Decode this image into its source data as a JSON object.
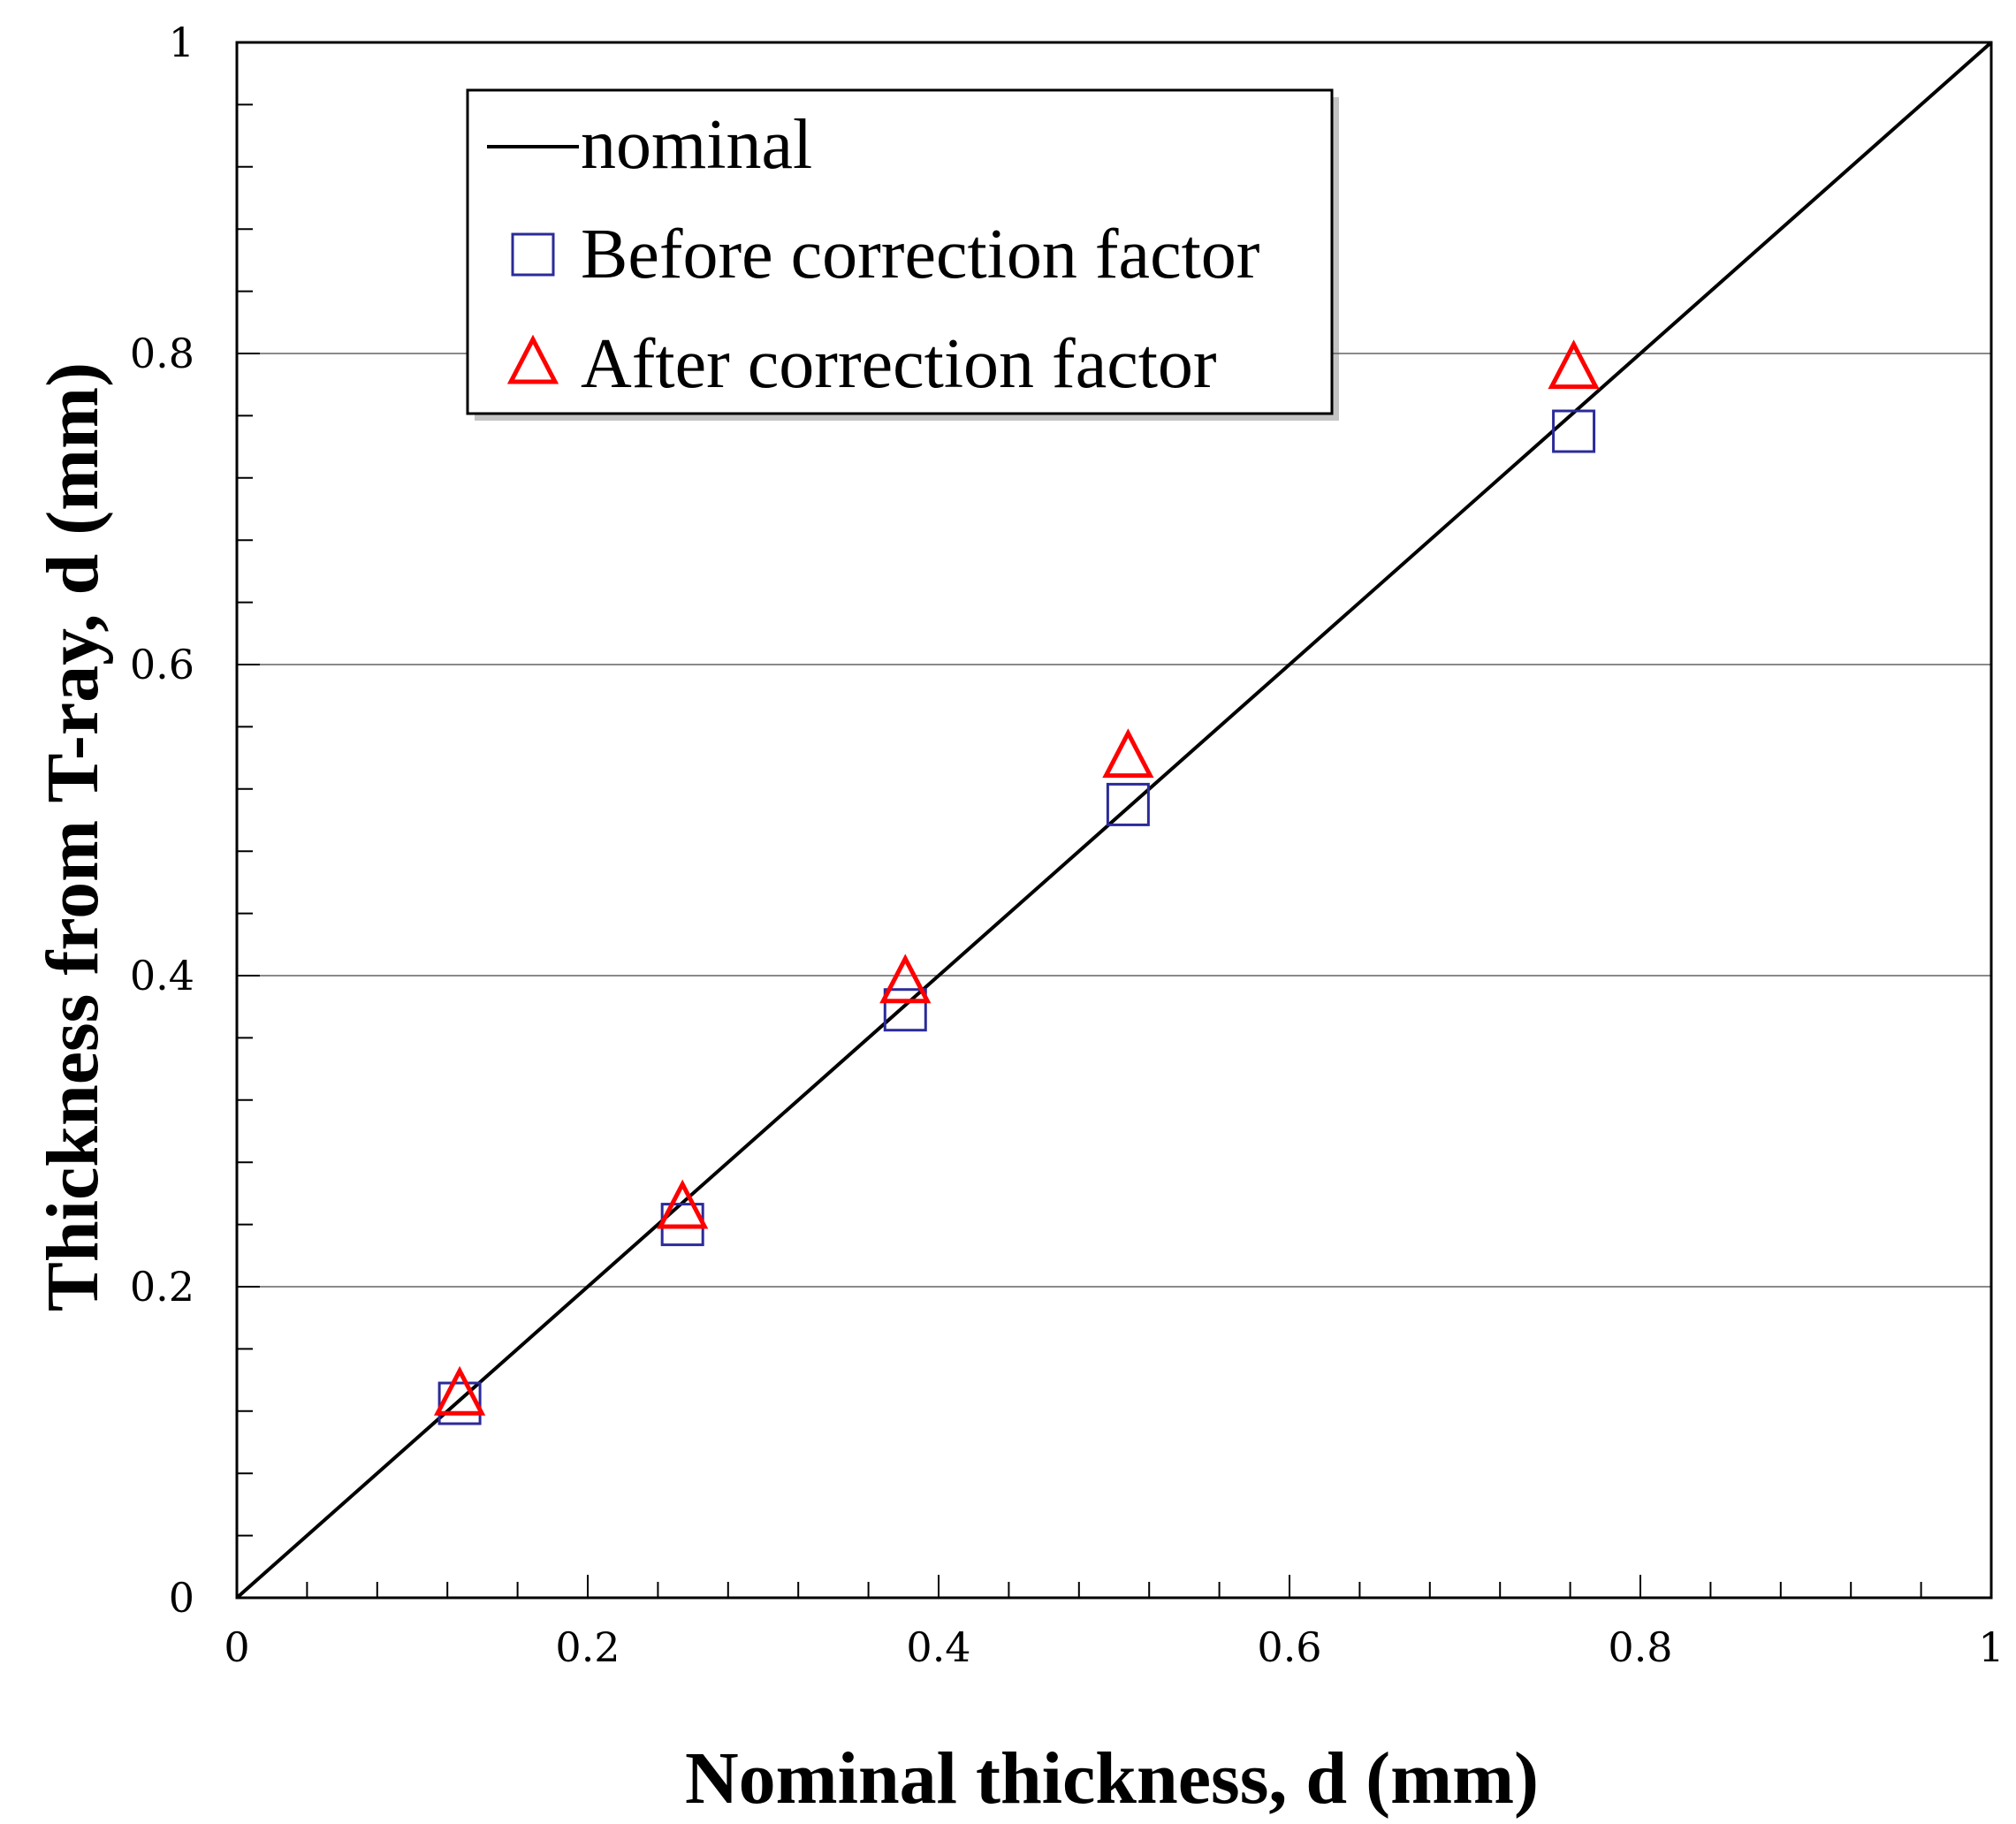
{
  "chart_data": {
    "type": "scatter",
    "title": "",
    "xlabel": "Nominal thickness, d (mm)",
    "ylabel": "Thickness from T-ray, d (mm)",
    "xlim": [
      0,
      1
    ],
    "ylim": [
      0,
      1
    ],
    "x_ticks": [
      0,
      0.2,
      0.4,
      0.6,
      0.8,
      1
    ],
    "x_tick_labels": [
      "0",
      "0.2",
      "0.4",
      "0.6",
      "0.8",
      "1"
    ],
    "y_ticks": [
      0,
      0.2,
      0.4,
      0.6,
      0.8,
      1
    ],
    "y_tick_labels": [
      "0",
      "0.2",
      "0.4",
      "0.6",
      "0.8",
      "1"
    ],
    "x_minor_step": 0.04,
    "y_minor_step": 0.04,
    "grid": "horizontal major",
    "legend_position": "top-left",
    "series": [
      {
        "name": "nominal",
        "kind": "line",
        "color": "#000000",
        "x": [
          0,
          1
        ],
        "y": [
          0,
          1
        ]
      },
      {
        "name": "Before correction factor",
        "kind": "marker",
        "marker": "square",
        "color": "#2b2b9a",
        "x": [
          0.127,
          0.254,
          0.381,
          0.508,
          0.762
        ],
        "y": [
          0.125,
          0.24,
          0.378,
          0.51,
          0.75
        ]
      },
      {
        "name": "After correction factor",
        "kind": "marker",
        "marker": "triangle",
        "color": "#ff0000",
        "x": [
          0.127,
          0.254,
          0.381,
          0.508,
          0.762
        ],
        "y": [
          0.13,
          0.25,
          0.395,
          0.54,
          0.79
        ]
      }
    ]
  }
}
